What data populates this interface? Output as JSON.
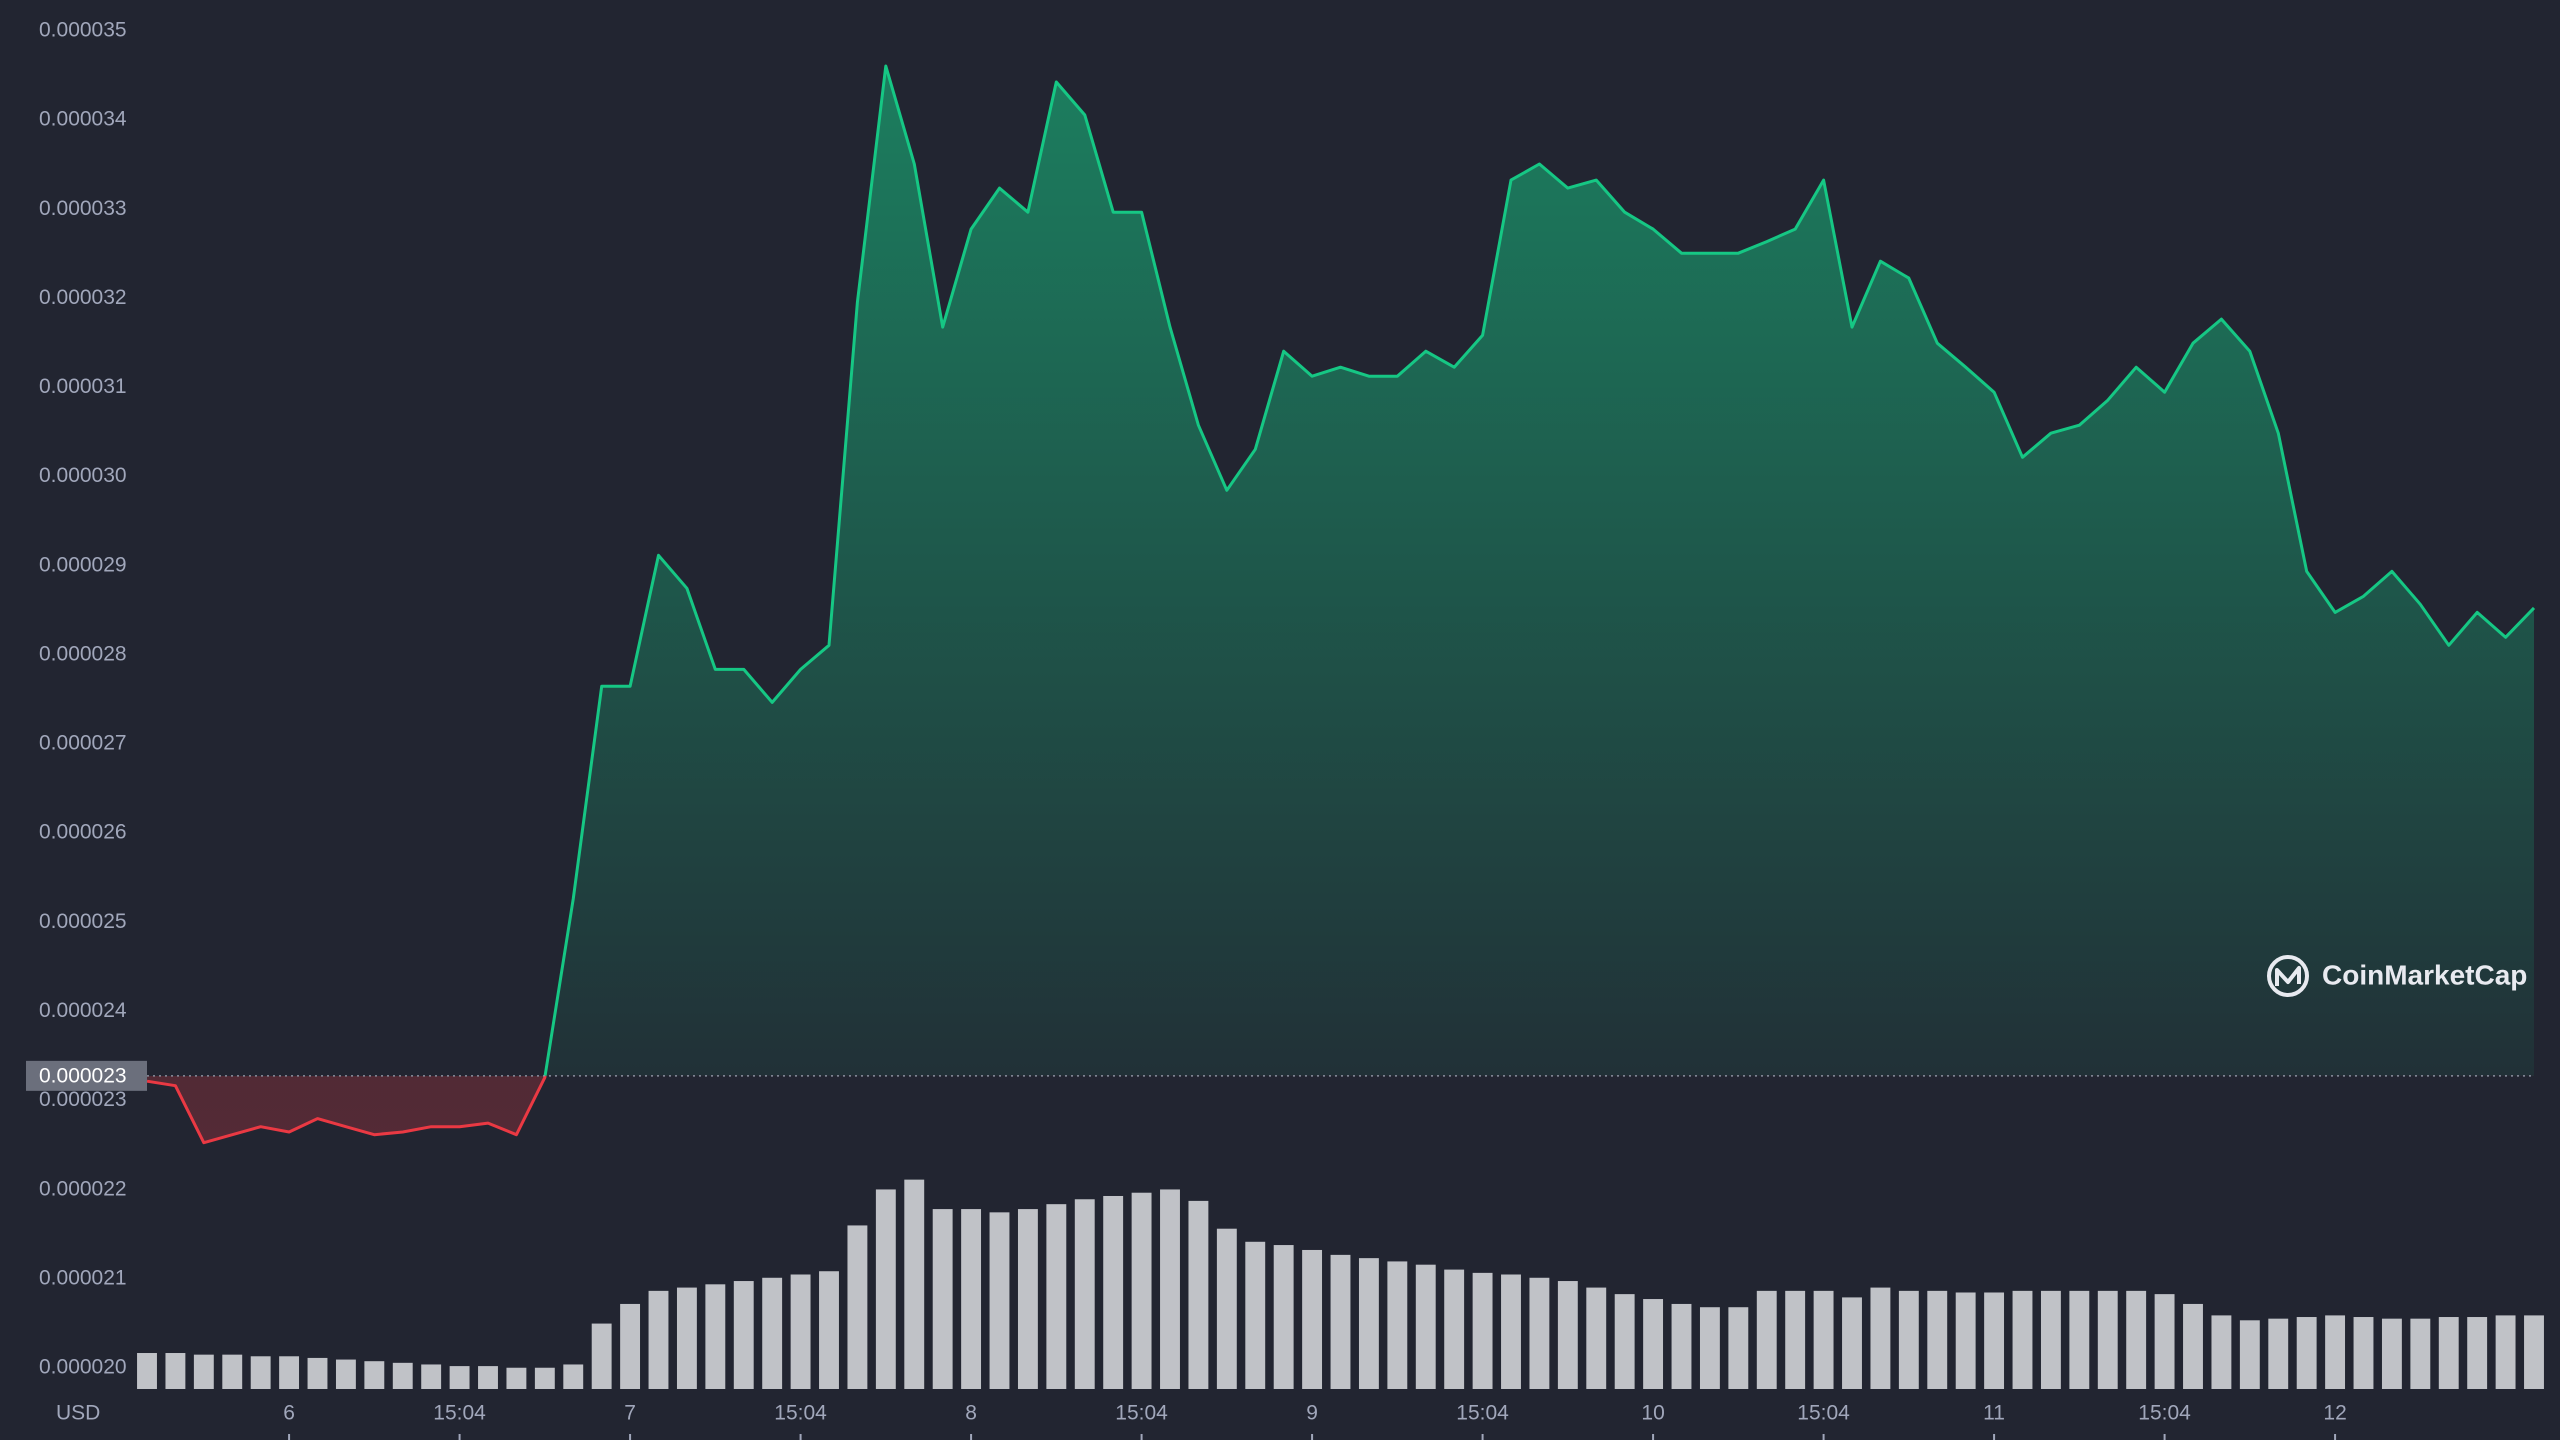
{
  "chart_data": {
    "type": "area",
    "axis_unit": "USD",
    "watermark": "CoinMarketCap",
    "color_up": "#16c784",
    "color_down": "#ea3943",
    "baseline": {
      "value": 2.33e-05,
      "label": "0.000023"
    },
    "xlim": [
      0,
      168
    ],
    "ylim": [
      2e-05,
      3.5e-05
    ],
    "grid": false,
    "yticks": [
      {
        "value": 2e-05,
        "label": "0.000020"
      },
      2.1e-05,
      2.2e-05,
      2.3e-05,
      2.4e-05,
      2.5e-05,
      2.6e-05,
      2.7e-05,
      2.8e-05,
      2.9e-05,
      {
        "value": 3e-05,
        "label": "0.000030"
      },
      3.1e-05,
      3.2e-05,
      3.3e-05,
      3.4e-05,
      3.5e-05
    ],
    "xticks": [
      {
        "value": 10,
        "label": "6"
      },
      {
        "value": 22,
        "label": "15:04"
      },
      {
        "value": 34,
        "label": "7"
      },
      {
        "value": 46,
        "label": "15:04"
      },
      {
        "value": 58,
        "label": "8"
      },
      {
        "value": 70,
        "label": "15:04"
      },
      {
        "value": 82,
        "label": "9"
      },
      {
        "value": 94,
        "label": "15:04"
      },
      {
        "value": 106,
        "label": "10"
      },
      {
        "value": 118,
        "label": "15:04"
      },
      {
        "value": 130,
        "label": "11"
      },
      {
        "value": 142,
        "label": "15:04"
      },
      {
        "value": 154,
        "label": "12"
      }
    ],
    "x": [
      0,
      2,
      4,
      6,
      8,
      10,
      12,
      14,
      16,
      18,
      20,
      22,
      24,
      26,
      28,
      30,
      32,
      34,
      36,
      38,
      40,
      42,
      44,
      46,
      48,
      50,
      52,
      54,
      56,
      58,
      60,
      62,
      64,
      66,
      68,
      70,
      72,
      74,
      76,
      78,
      80,
      82,
      84,
      86,
      88,
      90,
      92,
      94,
      96,
      98,
      100,
      102,
      104,
      106,
      108,
      110,
      112,
      114,
      116,
      118,
      120,
      122,
      124,
      126,
      128,
      130,
      132,
      134,
      136,
      138,
      140,
      142,
      144,
      146,
      148,
      150,
      152,
      154,
      156,
      158,
      160,
      162,
      164,
      166,
      168
    ],
    "values": [
      2.324e-05,
      2.319e-05,
      2.255e-05,
      2.264e-05,
      2.273e-05,
      2.267e-05,
      2.282e-05,
      2.273e-05,
      2.264e-05,
      2.267e-05,
      2.273e-05,
      2.273e-05,
      2.277e-05,
      2.264e-05,
      2.328e-05,
      2.529e-05,
      2.767e-05,
      2.767e-05,
      2.914e-05,
      2.877e-05,
      2.786e-05,
      2.786e-05,
      2.749e-05,
      2.786e-05,
      2.813e-05,
      3.198e-05,
      3.463e-05,
      3.353e-05,
      3.17e-05,
      3.28e-05,
      3.326e-05,
      3.299e-05,
      3.445e-05,
      3.408e-05,
      3.299e-05,
      3.299e-05,
      3.17e-05,
      3.06e-05,
      2.987e-05,
      3.033e-05,
      3.143e-05,
      3.115e-05,
      3.125e-05,
      3.115e-05,
      3.115e-05,
      3.143e-05,
      3.125e-05,
      3.161e-05,
      3.335e-05,
      3.353e-05,
      3.326e-05,
      3.335e-05,
      3.299e-05,
      3.28e-05,
      3.253e-05,
      3.253e-05,
      3.253e-05,
      3.266e-05,
      3.28e-05,
      3.335e-05,
      3.17e-05,
      3.244e-05,
      3.225e-05,
      3.152e-05,
      3.125e-05,
      3.097e-05,
      3.024e-05,
      3.051e-05,
      3.06e-05,
      3.088e-05,
      3.125e-05,
      3.097e-05,
      3.152e-05,
      3.179e-05,
      3.143e-05,
      3.051e-05,
      2.896e-05,
      2.85e-05,
      2.868e-05,
      2.896e-05,
      2.859e-05,
      2.813e-05,
      2.85e-05,
      2.822e-05,
      2.855e-05
    ],
    "volume": {
      "color": "#e9eaee",
      "ylim": [
        0,
        140
      ],
      "values": [
        22,
        22,
        21,
        21,
        20,
        20,
        19,
        18,
        17,
        16,
        15,
        14,
        14,
        13,
        13,
        15,
        40,
        52,
        60,
        62,
        64,
        66,
        68,
        70,
        72,
        100,
        122,
        128,
        110,
        110,
        108,
        110,
        113,
        116,
        118,
        120,
        122,
        115,
        98,
        90,
        88,
        85,
        82,
        80,
        78,
        76,
        73,
        71,
        70,
        68,
        66,
        62,
        58,
        55,
        52,
        50,
        50,
        60,
        60,
        60,
        56,
        62,
        60,
        60,
        59,
        59,
        60,
        60,
        60,
        60,
        60,
        58,
        52,
        45,
        42,
        43,
        44,
        45,
        44,
        43,
        43,
        44,
        44,
        45,
        45
      ]
    }
  }
}
